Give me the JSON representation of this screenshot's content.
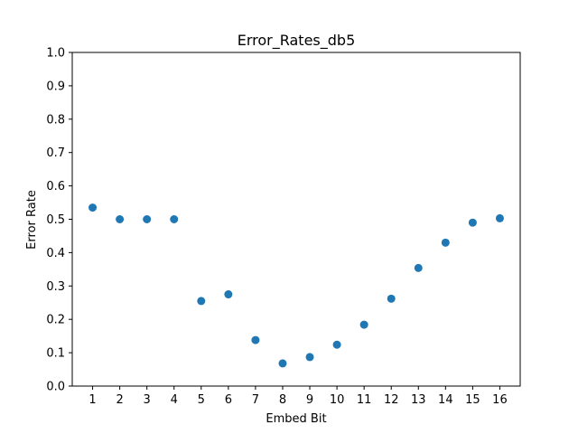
{
  "chart_data": {
    "type": "scatter",
    "title": "Error_Rates_db5",
    "xlabel": "Embed Bit",
    "ylabel": "Error Rate",
    "x": [
      1,
      2,
      3,
      4,
      5,
      6,
      7,
      8,
      9,
      10,
      11,
      12,
      13,
      14,
      15,
      16
    ],
    "y": [
      0.535,
      0.5,
      0.5,
      0.5,
      0.255,
      0.275,
      0.138,
      0.068,
      0.087,
      0.124,
      0.184,
      0.262,
      0.354,
      0.43,
      0.49,
      0.503
    ],
    "xlim": [
      0.25,
      16.75
    ],
    "ylim": [
      0.0,
      1.0
    ],
    "x_ticks": [
      1,
      2,
      3,
      4,
      5,
      6,
      7,
      8,
      9,
      10,
      11,
      12,
      13,
      14,
      15,
      16
    ],
    "x_tick_labels": [
      "1",
      "2",
      "3",
      "4",
      "5",
      "6",
      "7",
      "8",
      "9",
      "10",
      "11",
      "12",
      "13",
      "14",
      "15",
      "16"
    ],
    "y_ticks": [
      0.0,
      0.1,
      0.2,
      0.3,
      0.4,
      0.5,
      0.6,
      0.7,
      0.8,
      0.9,
      1.0
    ],
    "y_tick_labels": [
      "0.0",
      "0.1",
      "0.2",
      "0.3",
      "0.4",
      "0.5",
      "0.6",
      "0.7",
      "0.8",
      "0.9",
      "1.0"
    ],
    "grid": false,
    "marker_color": "#1f77b4",
    "axis_color": "#000000"
  }
}
